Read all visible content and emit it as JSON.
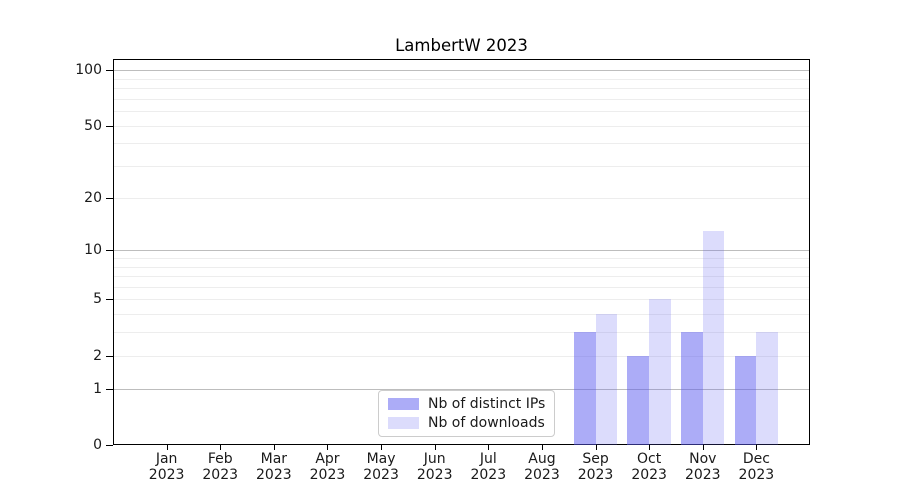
{
  "chart_data": {
    "type": "bar",
    "title": "LambertW 2023",
    "categories": [
      "Jan 2023",
      "Feb 2023",
      "Mar 2023",
      "Apr 2023",
      "May 2023",
      "Jun 2023",
      "Jul 2023",
      "Aug 2023",
      "Sep 2023",
      "Oct 2023",
      "Nov 2023",
      "Dec 2023"
    ],
    "series": [
      {
        "name": "Nb of distinct IPs",
        "color": "rgba(90,90,240,0.50)",
        "values": [
          0,
          0,
          0,
          0,
          0,
          0,
          0,
          0,
          3,
          2,
          3,
          2
        ]
      },
      {
        "name": "Nb of downloads",
        "color": "rgba(90,90,240,0.21)",
        "values": [
          0,
          0,
          0,
          0,
          0,
          0,
          0,
          0,
          4,
          5,
          13,
          3
        ]
      }
    ],
    "xlabel": "",
    "ylabel": "",
    "yscale": "log1p",
    "yticks": [
      0,
      1,
      2,
      5,
      10,
      20,
      50,
      100
    ],
    "ytick_major_gridlines": [
      1,
      10,
      100
    ],
    "ytick_minor_gridlines": [
      2,
      3,
      4,
      5,
      6,
      7,
      8,
      9,
      20,
      30,
      40,
      50,
      60,
      70,
      80,
      90
    ],
    "ylim": [
      0,
      114
    ],
    "grid": true,
    "legend_position": "lower center"
  }
}
